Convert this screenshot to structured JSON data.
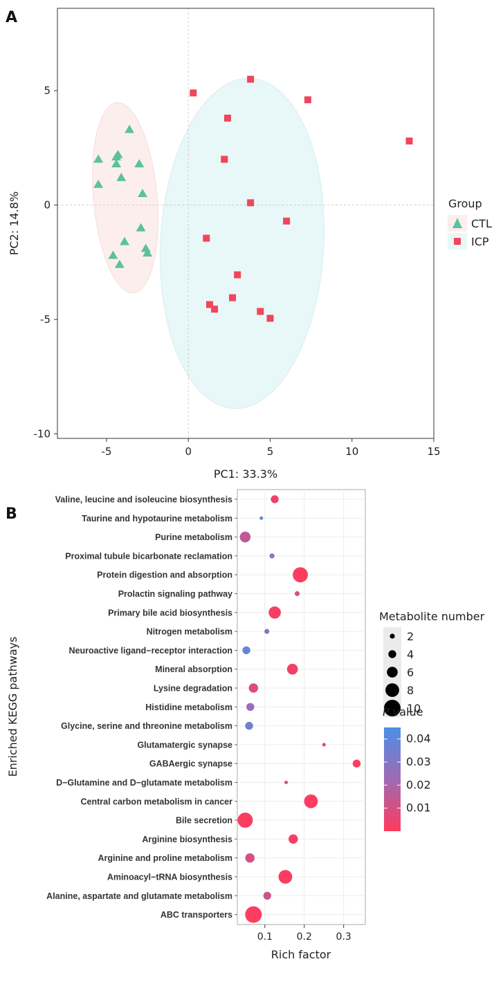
{
  "panels": {
    "a": "A",
    "b": "B"
  },
  "chart_data": [
    {
      "type": "scatter",
      "xlabel": "PC1: 33.3%",
      "ylabel": "PC2: 14.8%",
      "xlim": [
        -8,
        15
      ],
      "ylim": [
        -10.2,
        8.6
      ],
      "x_ticks": [
        -5,
        0,
        5,
        10,
        15
      ],
      "y_ticks": [
        5,
        0,
        -5,
        -10
      ],
      "legend": {
        "title": "Group",
        "position": "right"
      },
      "series": [
        {
          "name": "CTL",
          "marker": "triangle",
          "color": "#5bc29b",
          "points": [
            [
              -3.6,
              3.3
            ],
            [
              -4.3,
              2.2
            ],
            [
              -4.4,
              2.1
            ],
            [
              -5.5,
              2.0
            ],
            [
              -4.4,
              1.8
            ],
            [
              -3.0,
              1.8
            ],
            [
              -4.1,
              1.2
            ],
            [
              -5.5,
              0.9
            ],
            [
              -2.8,
              0.5
            ],
            [
              -2.9,
              -1.0
            ],
            [
              -3.9,
              -1.6
            ],
            [
              -2.6,
              -1.9
            ],
            [
              -2.5,
              -2.1
            ],
            [
              -4.6,
              -2.2
            ],
            [
              -4.2,
              -2.6
            ]
          ]
        },
        {
          "name": "ICP",
          "marker": "square",
          "color": "#f0455b",
          "points": [
            [
              3.8,
              5.5
            ],
            [
              0.3,
              4.9
            ],
            [
              7.3,
              4.6
            ],
            [
              2.4,
              3.8
            ],
            [
              13.5,
              2.8
            ],
            [
              2.2,
              2.0
            ],
            [
              3.8,
              0.1
            ],
            [
              6.0,
              -0.7
            ],
            [
              1.1,
              -1.45
            ],
            [
              3.0,
              -3.05
            ],
            [
              1.3,
              -4.35
            ],
            [
              1.6,
              -4.55
            ],
            [
              2.7,
              -4.05
            ],
            [
              4.4,
              -4.65
            ],
            [
              5.0,
              -4.95
            ]
          ]
        }
      ],
      "ellipse_colors": {
        "CTL": "#fdeeee",
        "ICP": "#e8f7f7"
      }
    },
    {
      "type": "scatter",
      "xlabel": "Rich factor",
      "ylabel": "Enriched KEGG pathways",
      "xlim": [
        0.03,
        0.355
      ],
      "x_ticks": [
        0.1,
        0.2,
        0.3
      ],
      "x_tick_labels": [
        "0.1",
        "0.2",
        "0.3"
      ],
      "size_legend": {
        "title": "Metabolite number",
        "values": [
          2,
          4,
          6,
          8,
          10
        ]
      },
      "color_legend": {
        "title_italic": "P",
        "title_rest": " value",
        "ticks": [
          0.04,
          0.03,
          0.02,
          0.01
        ],
        "tick_labels": [
          "0.04",
          "0.03",
          "0.02",
          "0.01"
        ],
        "range": [
          0.0,
          0.045
        ],
        "low_color": "#ff3b5c",
        "mid_color": "#a06ab4",
        "high_color": "#4c8fe6"
      },
      "categories": [
        "Valine, leucine and isoleucine biosynthesis",
        "Taurine and hypotaurine metabolism",
        "Purine metabolism",
        "Proximal tubule bicarbonate reclamation",
        "Protein digestion and absorption",
        "Prolactin signaling pathway",
        "Primary bile acid biosynthesis",
        "Nitrogen metabolism",
        "Neuroactive ligand−receptor interaction",
        "Mineral absorption",
        "Lysine degradation",
        "Histidine metabolism",
        "Glycine, serine and threonine metabolism",
        "Glutamatergic synapse",
        "GABAergic synapse",
        "D−Glutamine and D−glutamate metabolism",
        "Central carbon metabolism in cancer",
        "Bile secretion",
        "Arginine biosynthesis",
        "Arginine and proline metabolism",
        "Aminoacyl−tRNA biosynthesis",
        "Alanine, aspartate and glutamate metabolism",
        "ABC transporters"
      ],
      "points": [
        {
          "x": 0.125,
          "count": 4,
          "p": 0.003
        },
        {
          "x": 0.091,
          "count": 1,
          "p": 0.04
        },
        {
          "x": 0.05,
          "count": 6,
          "p": 0.015
        },
        {
          "x": 0.118,
          "count": 2,
          "p": 0.025
        },
        {
          "x": 0.19,
          "count": 9,
          "p": 0.001
        },
        {
          "x": 0.182,
          "count": 2,
          "p": 0.01
        },
        {
          "x": 0.125,
          "count": 7,
          "p": 0.002
        },
        {
          "x": 0.105,
          "count": 2,
          "p": 0.028
        },
        {
          "x": 0.053,
          "count": 4,
          "p": 0.038
        },
        {
          "x": 0.17,
          "count": 6,
          "p": 0.003
        },
        {
          "x": 0.071,
          "count": 5,
          "p": 0.008
        },
        {
          "x": 0.063,
          "count": 4,
          "p": 0.025
        },
        {
          "x": 0.06,
          "count": 4,
          "p": 0.035
        },
        {
          "x": 0.25,
          "count": 1,
          "p": 0.005
        },
        {
          "x": 0.333,
          "count": 4,
          "p": 0.001
        },
        {
          "x": 0.154,
          "count": 1,
          "p": 0.01
        },
        {
          "x": 0.217,
          "count": 8,
          "p": 0.001
        },
        {
          "x": 0.05,
          "count": 9,
          "p": 0.001
        },
        {
          "x": 0.172,
          "count": 5,
          "p": 0.002
        },
        {
          "x": 0.062,
          "count": 5,
          "p": 0.01
        },
        {
          "x": 0.152,
          "count": 8,
          "p": 0.001
        },
        {
          "x": 0.106,
          "count": 4,
          "p": 0.012
        },
        {
          "x": 0.071,
          "count": 10,
          "p": 0.001
        }
      ]
    }
  ]
}
